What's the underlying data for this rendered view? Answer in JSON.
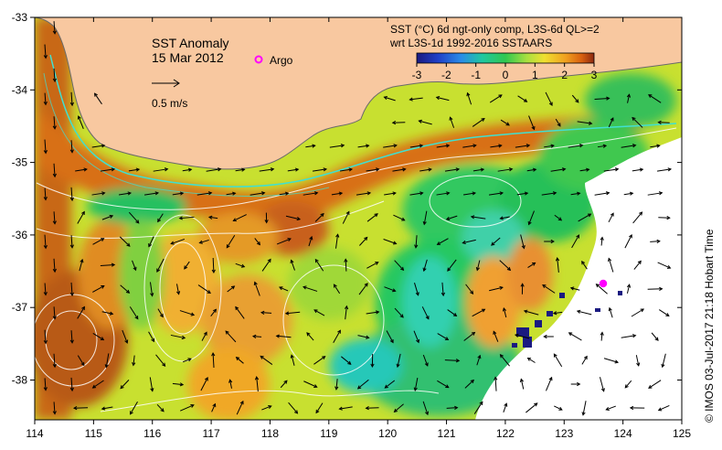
{
  "map": {
    "title": "SST Anomaly",
    "date": "15 Mar 2012",
    "argo_label": "Argo",
    "velocity_scale_label": "0.5 m/s",
    "product_line1": "SST (°C) 6d ngt-only comp, L3S-6d QL>=2",
    "product_line2": "wrt L3S-1d 1992-2016 SSTAARS",
    "credit": "© IMOS 03-Jul-2017 21:18 Hobart Time",
    "lon_ticks": [
      "114",
      "115",
      "116",
      "117",
      "118",
      "119",
      "120",
      "121",
      "122",
      "123",
      "124",
      "125"
    ],
    "lat_ticks": [
      "-33",
      "-34",
      "-35",
      "-36",
      "-37",
      "-38"
    ],
    "colorbar_ticks": [
      "-3",
      "-2",
      "-1",
      "0",
      "1",
      "2",
      "3"
    ],
    "colors": {
      "land": "#f8c8a0",
      "no_data": "#ffffff",
      "contour": "#ffffff",
      "current_core": "#40e0d0",
      "argo": "#ff00ff",
      "colorbar": [
        "#1a1a80",
        "#2040c8",
        "#2a8ce8",
        "#20c8a0",
        "#30c850",
        "#a8e040",
        "#f0e030",
        "#f0a020",
        "#d86010",
        "#8c2a10"
      ]
    }
  }
}
